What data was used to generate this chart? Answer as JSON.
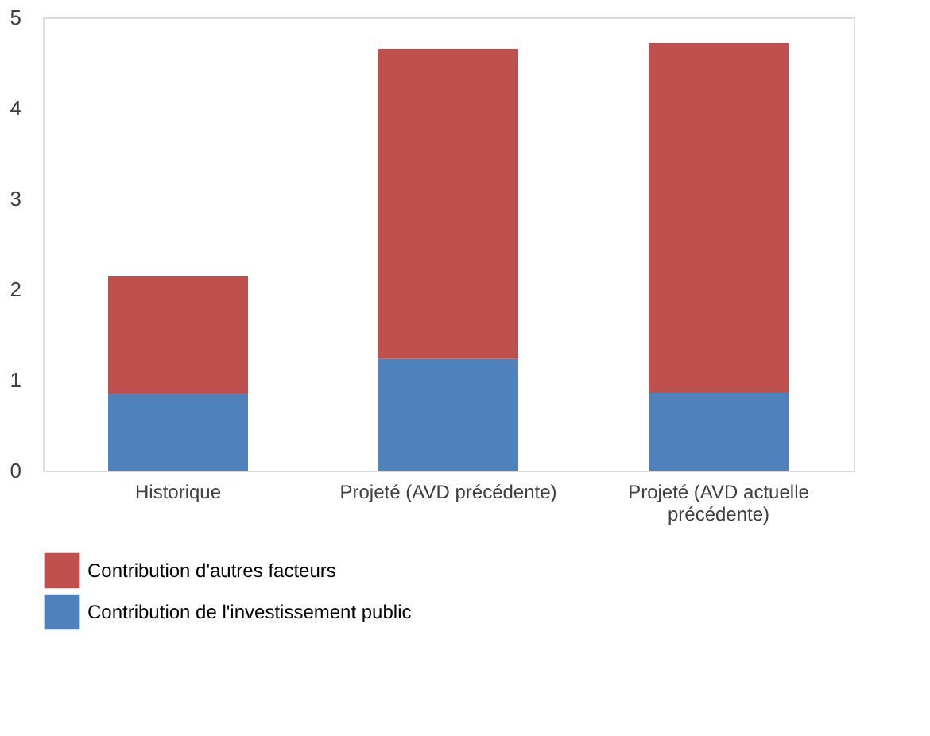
{
  "chart_data": {
    "type": "bar",
    "stacked": true,
    "categories": [
      "Historique",
      "Projeté (AVD précédente)",
      "Projeté (AVD actuelle précédente)"
    ],
    "series": [
      {
        "name": "Contribution de l'investissement public",
        "color": "#4f81bd",
        "values": [
          0.85,
          1.23,
          0.86
        ]
      },
      {
        "name": "Contribution d'autres facteurs",
        "color": "#c0504d",
        "values": [
          1.3,
          3.42,
          3.86
        ]
      }
    ],
    "ylim": [
      0,
      5
    ],
    "yticks": [
      0,
      1,
      2,
      3,
      4,
      5
    ],
    "grid": false,
    "legend": "bottom"
  }
}
